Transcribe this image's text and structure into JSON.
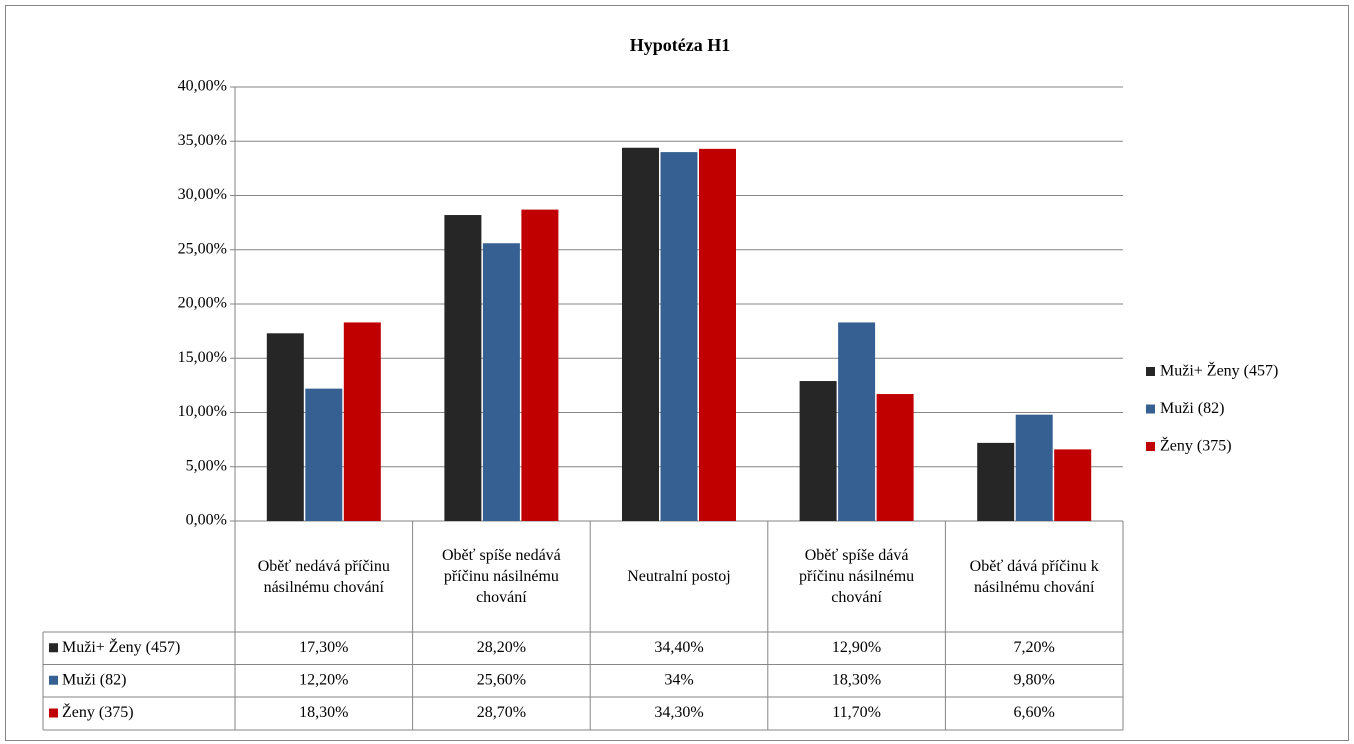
{
  "chart_data": {
    "type": "bar",
    "title": "Hypotéza H1",
    "categories": [
      "Oběť nedává příčinu násilnému chování",
      "Oběť spíše nedává příčinu násilnému chování",
      "Neutralní postoj",
      "Oběť spíše dává příčinu násilnému chování",
      "Oběť  dává příčinu k násilnému chování"
    ],
    "series": [
      {
        "name": "Muži+ Ženy (457)",
        "color": "#262626",
        "values": [
          17.3,
          28.2,
          34.4,
          12.9,
          7.2
        ],
        "value_labels": [
          "17,30%",
          "28,20%",
          "34,40%",
          "12,90%",
          "7,20%"
        ]
      },
      {
        "name": "Muži (82)",
        "color": "#376092",
        "values": [
          12.2,
          25.6,
          34,
          18.3,
          9.8
        ],
        "value_labels": [
          "12,20%",
          "25,60%",
          "34%",
          "18,30%",
          "9,80%"
        ]
      },
      {
        "name": "Ženy (375)",
        "color": "#c00000",
        "values": [
          18.3,
          28.7,
          34.3,
          11.7,
          6.6
        ],
        "value_labels": [
          "18,30%",
          "28,70%",
          "34,30%",
          "11,70%",
          "6,60%"
        ]
      }
    ],
    "ylim": [
      0,
      40
    ],
    "yticks": [
      {
        "value": 0,
        "label": "0,00%"
      },
      {
        "value": 5,
        "label": "5,00%"
      },
      {
        "value": 10,
        "label": "10,00%"
      },
      {
        "value": 15,
        "label": "15,00%"
      },
      {
        "value": 20,
        "label": "20,00%"
      },
      {
        "value": 25,
        "label": "25,00%"
      },
      {
        "value": 30,
        "label": "30,00%"
      },
      {
        "value": 35,
        "label": "35,00%"
      },
      {
        "value": 40,
        "label": "40,00%"
      }
    ],
    "grid": true,
    "legend": "right"
  }
}
